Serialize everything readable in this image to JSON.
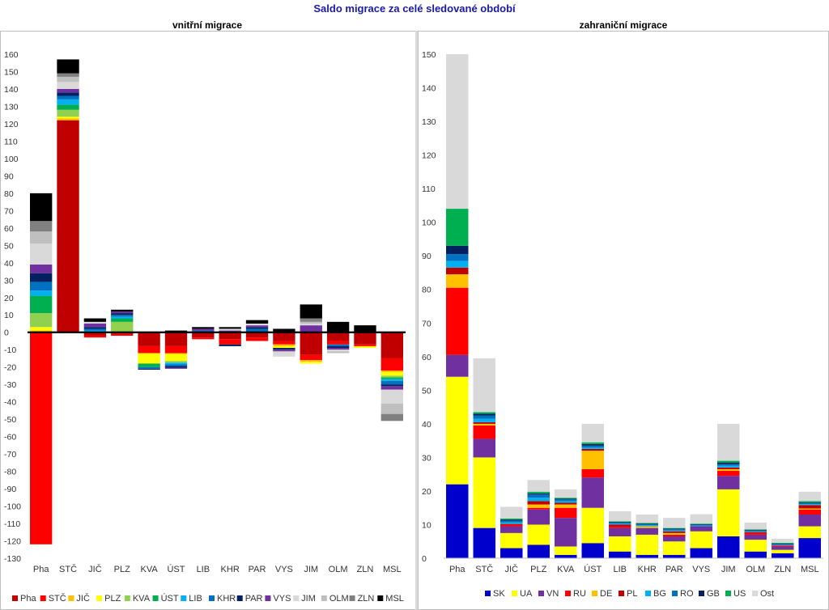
{
  "title": "Saldo migrace za celé sledované období",
  "chart_data": [
    {
      "type": "bar",
      "stacked": true,
      "title": "vnitřní migrace",
      "categories": [
        "Pha",
        "STČ",
        "JIČ",
        "PLZ",
        "KVA",
        "ÚST",
        "LIB",
        "KHR",
        "PAR",
        "VYS",
        "JIM",
        "OLM",
        "ZLN",
        "MSL"
      ],
      "ylim": [
        -130,
        160
      ],
      "ytick_step": 10,
      "grid": false,
      "legend_position": "bottom",
      "series": [
        {
          "name": "Pha",
          "color": "#c00000",
          "values": [
            0,
            122,
            -2,
            -1,
            -8,
            -8,
            -3,
            -4,
            -3,
            -5,
            -13,
            -5,
            -7,
            -15
          ]
        },
        {
          "name": "STČ",
          "color": "#ff0000",
          "values": [
            -122,
            0,
            -1,
            -1,
            -4,
            -4,
            -1,
            -3,
            -2,
            -2,
            -3,
            -2,
            -1,
            -7
          ]
        },
        {
          "name": "JIČ",
          "color": "#ffc000",
          "values": [
            1,
            1,
            0,
            0,
            0,
            -0.5,
            0,
            0,
            0,
            -1,
            -1,
            0,
            0,
            -1
          ]
        },
        {
          "name": "PLZ",
          "color": "#ffff00",
          "values": [
            2,
            1,
            0,
            0,
            -6,
            -4,
            0,
            0,
            0,
            -1,
            -1,
            0,
            -1,
            -2
          ]
        },
        {
          "name": "KVA",
          "color": "#92d050",
          "values": [
            8,
            4,
            0,
            6,
            0,
            -1,
            0,
            0,
            0,
            0,
            0,
            0,
            0,
            -1
          ]
        },
        {
          "name": "ÚST",
          "color": "#00b050",
          "values": [
            10,
            3,
            0,
            2,
            -2,
            0,
            0,
            0,
            0,
            0,
            0,
            0,
            0,
            -1
          ]
        },
        {
          "name": "LIB",
          "color": "#00b0f0",
          "values": [
            3,
            3,
            1,
            1,
            0,
            -1,
            0,
            0,
            0,
            0,
            0,
            0,
            0,
            -1
          ]
        },
        {
          "name": "KHR",
          "color": "#0070c0",
          "values": [
            5,
            2,
            1,
            1,
            -1,
            -1,
            1,
            0,
            2,
            0,
            0,
            -1,
            0,
            -2
          ]
        },
        {
          "name": "PAR",
          "color": "#002060",
          "values": [
            5,
            2,
            1,
            1,
            -0.5,
            -1,
            0,
            -1,
            1,
            -1,
            0,
            -1,
            0,
            -1
          ]
        },
        {
          "name": "VYS",
          "color": "#7030a0",
          "values": [
            5,
            2,
            2,
            1,
            0,
            -0.5,
            1,
            1,
            1,
            -1,
            4,
            -1,
            0,
            -2
          ]
        },
        {
          "name": "JIM",
          "color": "#d9d9d9",
          "values": [
            12,
            4,
            1,
            0,
            0,
            0,
            0,
            1,
            1,
            -3,
            1,
            -1,
            0,
            -8
          ]
        },
        {
          "name": "OLM",
          "color": "#bfbfbf",
          "values": [
            7,
            3,
            0,
            0,
            0,
            0,
            0,
            0,
            0,
            0,
            1,
            -1,
            0,
            -6
          ]
        },
        {
          "name": "ZLN",
          "color": "#808080",
          "values": [
            6,
            2,
            0,
            0,
            0,
            0,
            0,
            0,
            0,
            0,
            2,
            0,
            0,
            -4
          ]
        },
        {
          "name": "MSL",
          "color": "#000000",
          "values": [
            16,
            8,
            2,
            1,
            0,
            1,
            1,
            1,
            2,
            2,
            8,
            6,
            4,
            0
          ]
        }
      ]
    },
    {
      "type": "bar",
      "stacked": true,
      "title": "zahraniční migrace",
      "categories": [
        "Pha",
        "STČ",
        "JIČ",
        "PLZ",
        "KVA",
        "ÚST",
        "LIB",
        "KHR",
        "PAR",
        "VYS",
        "JIM",
        "OLM",
        "ZLN",
        "MSL"
      ],
      "ylim": [
        0,
        150
      ],
      "ytick_step": 10,
      "grid": false,
      "legend_position": "bottom",
      "series": [
        {
          "name": "SK",
          "color": "#0000cc",
          "values": [
            22,
            9,
            3,
            4,
            1,
            4.5,
            2,
            1,
            1,
            3,
            6.5,
            2,
            1.5,
            6
          ]
        },
        {
          "name": "UA",
          "color": "#ffff00",
          "values": [
            32,
            21,
            4.5,
            6,
            2.5,
            10.5,
            4.5,
            6,
            4,
            5,
            14,
            3.5,
            1,
            3.5
          ]
        },
        {
          "name": "VN",
          "color": "#7030a0",
          "values": [
            6.5,
            5.5,
            2,
            4.5,
            8.5,
            9,
            2.5,
            2,
            1.5,
            1.5,
            4,
            1.5,
            1,
            3.5
          ]
        },
        {
          "name": "RU",
          "color": "#ff0000",
          "values": [
            20,
            4,
            0.5,
            0.5,
            3,
            2.5,
            0.5,
            0,
            0.5,
            0,
            1.5,
            0.5,
            0.3,
            1.5
          ]
        },
        {
          "name": "DE",
          "color": "#ffc000",
          "values": [
            4,
            0.5,
            0,
            1,
            1,
            5.5,
            0,
            0.5,
            0.5,
            0,
            0.5,
            0,
            0,
            0.3
          ]
        },
        {
          "name": "PL",
          "color": "#c00000",
          "values": [
            2,
            0.5,
            0.2,
            1,
            0.5,
            0.5,
            0.5,
            0,
            0.5,
            0,
            0.5,
            0.3,
            0,
            1
          ]
        },
        {
          "name": "BG",
          "color": "#00b0f0",
          "values": [
            2,
            1,
            0.5,
            1,
            0.5,
            0.5,
            0.3,
            0.3,
            0.3,
            0.2,
            0.5,
            0.2,
            0.2,
            0.3
          ]
        },
        {
          "name": "RO",
          "color": "#0070c0",
          "values": [
            2,
            1,
            0.5,
            1,
            0.5,
            0.5,
            0.3,
            0.3,
            0.3,
            0.2,
            0.5,
            0.2,
            0.2,
            0.3
          ]
        },
        {
          "name": "GB",
          "color": "#002060",
          "values": [
            2.5,
            0.5,
            0.3,
            0.3,
            0.2,
            0.5,
            0.2,
            0.2,
            0.2,
            0.2,
            0.5,
            0.2,
            0.2,
            0.2
          ]
        },
        {
          "name": "US",
          "color": "#00b050",
          "values": [
            11,
            0.5,
            0.3,
            0.5,
            0.3,
            0.5,
            0.2,
            0.2,
            0.2,
            0.2,
            0.5,
            0.2,
            0.2,
            0.4
          ]
        },
        {
          "name": "Ost",
          "color": "#d9d9d9",
          "values": [
            46,
            16,
            3.5,
            3.5,
            2.5,
            5.5,
            3,
            2.5,
            3,
            2.8,
            11,
            2,
            1.2,
            2.8
          ]
        }
      ]
    }
  ]
}
